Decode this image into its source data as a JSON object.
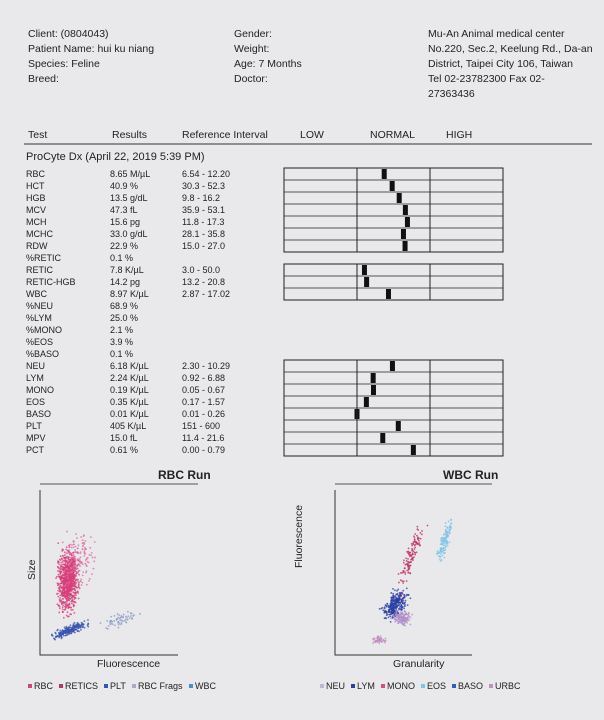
{
  "header": {
    "left": [
      "Client: (0804043)",
      "Patient Name: hui ku niang",
      "Species: Feline",
      "Breed:"
    ],
    "middle": [
      "Gender:",
      "Weight:",
      "Age: 7 Months",
      "Doctor:"
    ],
    "right": [
      "Mu-An Animal medical center",
      "No.220, Sec.2, Keelung Rd., Da-an",
      "District, Taipei City 106, Taiwan",
      "Tel 02-23782300  Fax 02-",
      "27363436"
    ]
  },
  "table": {
    "columns": [
      "Test",
      "Results",
      "Reference Interval",
      "LOW",
      "NORMAL",
      "HIGH"
    ],
    "section": "ProCyte Dx (April 22, 2019 5:39 PM)",
    "rows": [
      [
        "RBC",
        "8.65 M/µL",
        "6.54 - 12.20"
      ],
      [
        "HCT",
        "40.9 %",
        "30.3 - 52.3"
      ],
      [
        "HGB",
        "13.5 g/dL",
        "9.8 - 16.2"
      ],
      [
        "MCV",
        "47.3 fL",
        "35.9 - 53.1"
      ],
      [
        "MCH",
        "15.6 pg",
        "11.8 - 17.3"
      ],
      [
        "MCHC",
        "33.0 g/dL",
        "28.1 - 35.8"
      ],
      [
        "RDW",
        "22.9 %",
        "15.0 - 27.0"
      ],
      [
        "%RETIC",
        "0.1 %"
      ],
      [
        "RETIC",
        "7.8 K/µL",
        "3.0 - 50.0"
      ],
      [
        "RETIC-HGB",
        "14.2 pg",
        "13.2 - 20.8"
      ],
      [
        "WBC",
        "8.97 K/µL",
        "2.87 - 17.02"
      ],
      [
        "%NEU",
        "68.9 %"
      ],
      [
        "%LYM",
        "25.0 %"
      ],
      [
        "%MONO",
        "2.1 %"
      ],
      [
        "%EOS",
        "3.9 %"
      ],
      [
        "%BASO",
        "0.1 %"
      ],
      [
        "NEU",
        "6.18 K/µL",
        "2.30 - 10.29"
      ],
      [
        "LYM",
        "2.24 K/µL",
        "0.92 - 6.88"
      ],
      [
        "MONO",
        "0.19 K/µL",
        "0.05 - 0.67"
      ],
      [
        "EOS",
        "0.35 K/µL",
        "0.17 - 1.57"
      ],
      [
        "BASO",
        "0.01 K/µL",
        "0.01 - 0.26"
      ],
      [
        "PLT",
        "405 K/µL",
        "151 - 600"
      ],
      [
        "MPV",
        "15.0 fL",
        "11.4 - 21.6"
      ],
      [
        "PCT",
        "0.61 %",
        "0.00 - 0.79"
      ]
    ]
  },
  "plots": [
    {
      "title": "RBC Run",
      "y_label": "Size",
      "x_label": "Fluorescence",
      "legend": [
        "RBC",
        "RETICS",
        "PLT",
        "RBC Frags",
        "WBC"
      ]
    },
    {
      "title": "WBC Run",
      "y_label": "Fluorescence",
      "x_label": "Granularity",
      "legend": [
        "NEU",
        "LYM",
        "MONO",
        "EOS",
        "BASO",
        "URBC"
      ]
    }
  ]
}
